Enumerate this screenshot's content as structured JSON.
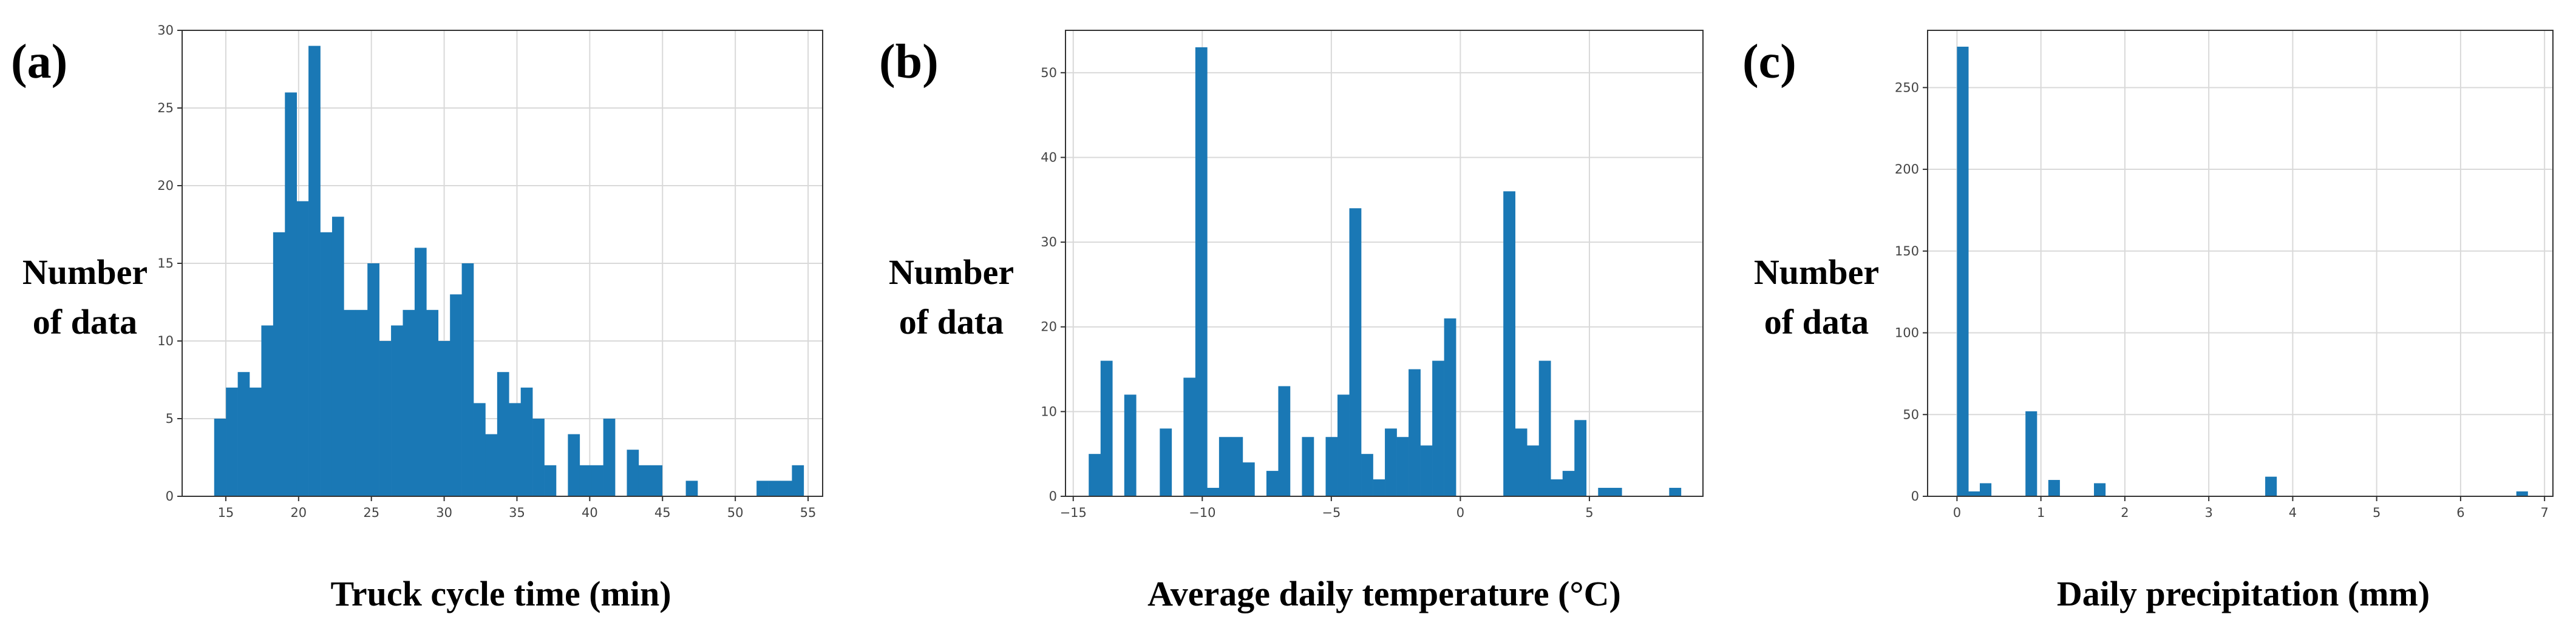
{
  "colors": {
    "bar": "#1a78b5",
    "grid": "#d9d9d9",
    "axis": "#333333"
  },
  "chart_data": [
    {
      "type": "bar",
      "panel_label": "(a)",
      "ylabel": [
        "Number",
        "of data"
      ],
      "xlabel": "Truck cycle time (min)",
      "grid": true,
      "xlim": [
        12.0,
        56.0
      ],
      "ylim": [
        0,
        30
      ],
      "xticks": [
        15,
        20,
        25,
        30,
        35,
        40,
        45,
        50,
        55
      ],
      "yticks": [
        0,
        5,
        10,
        15,
        20,
        25,
        30
      ],
      "bin_start": 14.2,
      "bin_width": 0.81,
      "values": [
        5,
        7,
        8,
        7,
        11,
        17,
        26,
        19,
        29,
        17,
        18,
        12,
        12,
        15,
        10,
        11,
        12,
        16,
        12,
        10,
        13,
        15,
        6,
        4,
        8,
        6,
        7,
        5,
        2,
        0,
        4,
        2,
        2,
        5,
        0,
        3,
        2,
        2,
        0,
        0,
        1,
        0,
        0,
        0,
        0,
        0,
        1,
        1,
        1,
        2
      ]
    },
    {
      "type": "bar",
      "panel_label": "(b)",
      "ylabel": [
        "Number",
        "of data"
      ],
      "xlabel": "Average daily temperature (°C)",
      "grid": true,
      "xlim": [
        -15.3,
        9.4
      ],
      "ylim": [
        0,
        55
      ],
      "xticks": [
        -15,
        -10,
        -5,
        0,
        5
      ],
      "yticks": [
        0,
        10,
        20,
        30,
        40,
        50
      ],
      "bin_start": -14.4,
      "bin_width": 0.459,
      "values": [
        5,
        16,
        0,
        12,
        0,
        0,
        8,
        0,
        14,
        53,
        1,
        7,
        7,
        4,
        0,
        3,
        13,
        0,
        7,
        0,
        7,
        12,
        34,
        5,
        2,
        8,
        7,
        15,
        6,
        16,
        21,
        0,
        0,
        0,
        0,
        36,
        8,
        6,
        16,
        2,
        3,
        9,
        0,
        1,
        1,
        0,
        0,
        0,
        0,
        1
      ]
    },
    {
      "type": "bar",
      "panel_label": "(c)",
      "ylabel": [
        "Number",
        "of data"
      ],
      "xlabel": "Daily precipitation (mm)",
      "grid": true,
      "xlim": [
        -0.35,
        7.1
      ],
      "ylim": [
        0,
        285
      ],
      "xticks": [
        0,
        1,
        2,
        3,
        4,
        5,
        6,
        7
      ],
      "yticks": [
        0,
        50,
        100,
        150,
        200,
        250
      ],
      "bin_start": 0.0,
      "bin_width": 0.136,
      "values": [
        275,
        3,
        8,
        0,
        0,
        0,
        52,
        0,
        10,
        0,
        0,
        0,
        8,
        0,
        0,
        0,
        0,
        0,
        0,
        0,
        0,
        0,
        0,
        0,
        0,
        0,
        0,
        12,
        0,
        0,
        0,
        0,
        0,
        0,
        0,
        0,
        0,
        0,
        0,
        0,
        0,
        0,
        0,
        0,
        0,
        0,
        0,
        0,
        0,
        3
      ]
    }
  ]
}
